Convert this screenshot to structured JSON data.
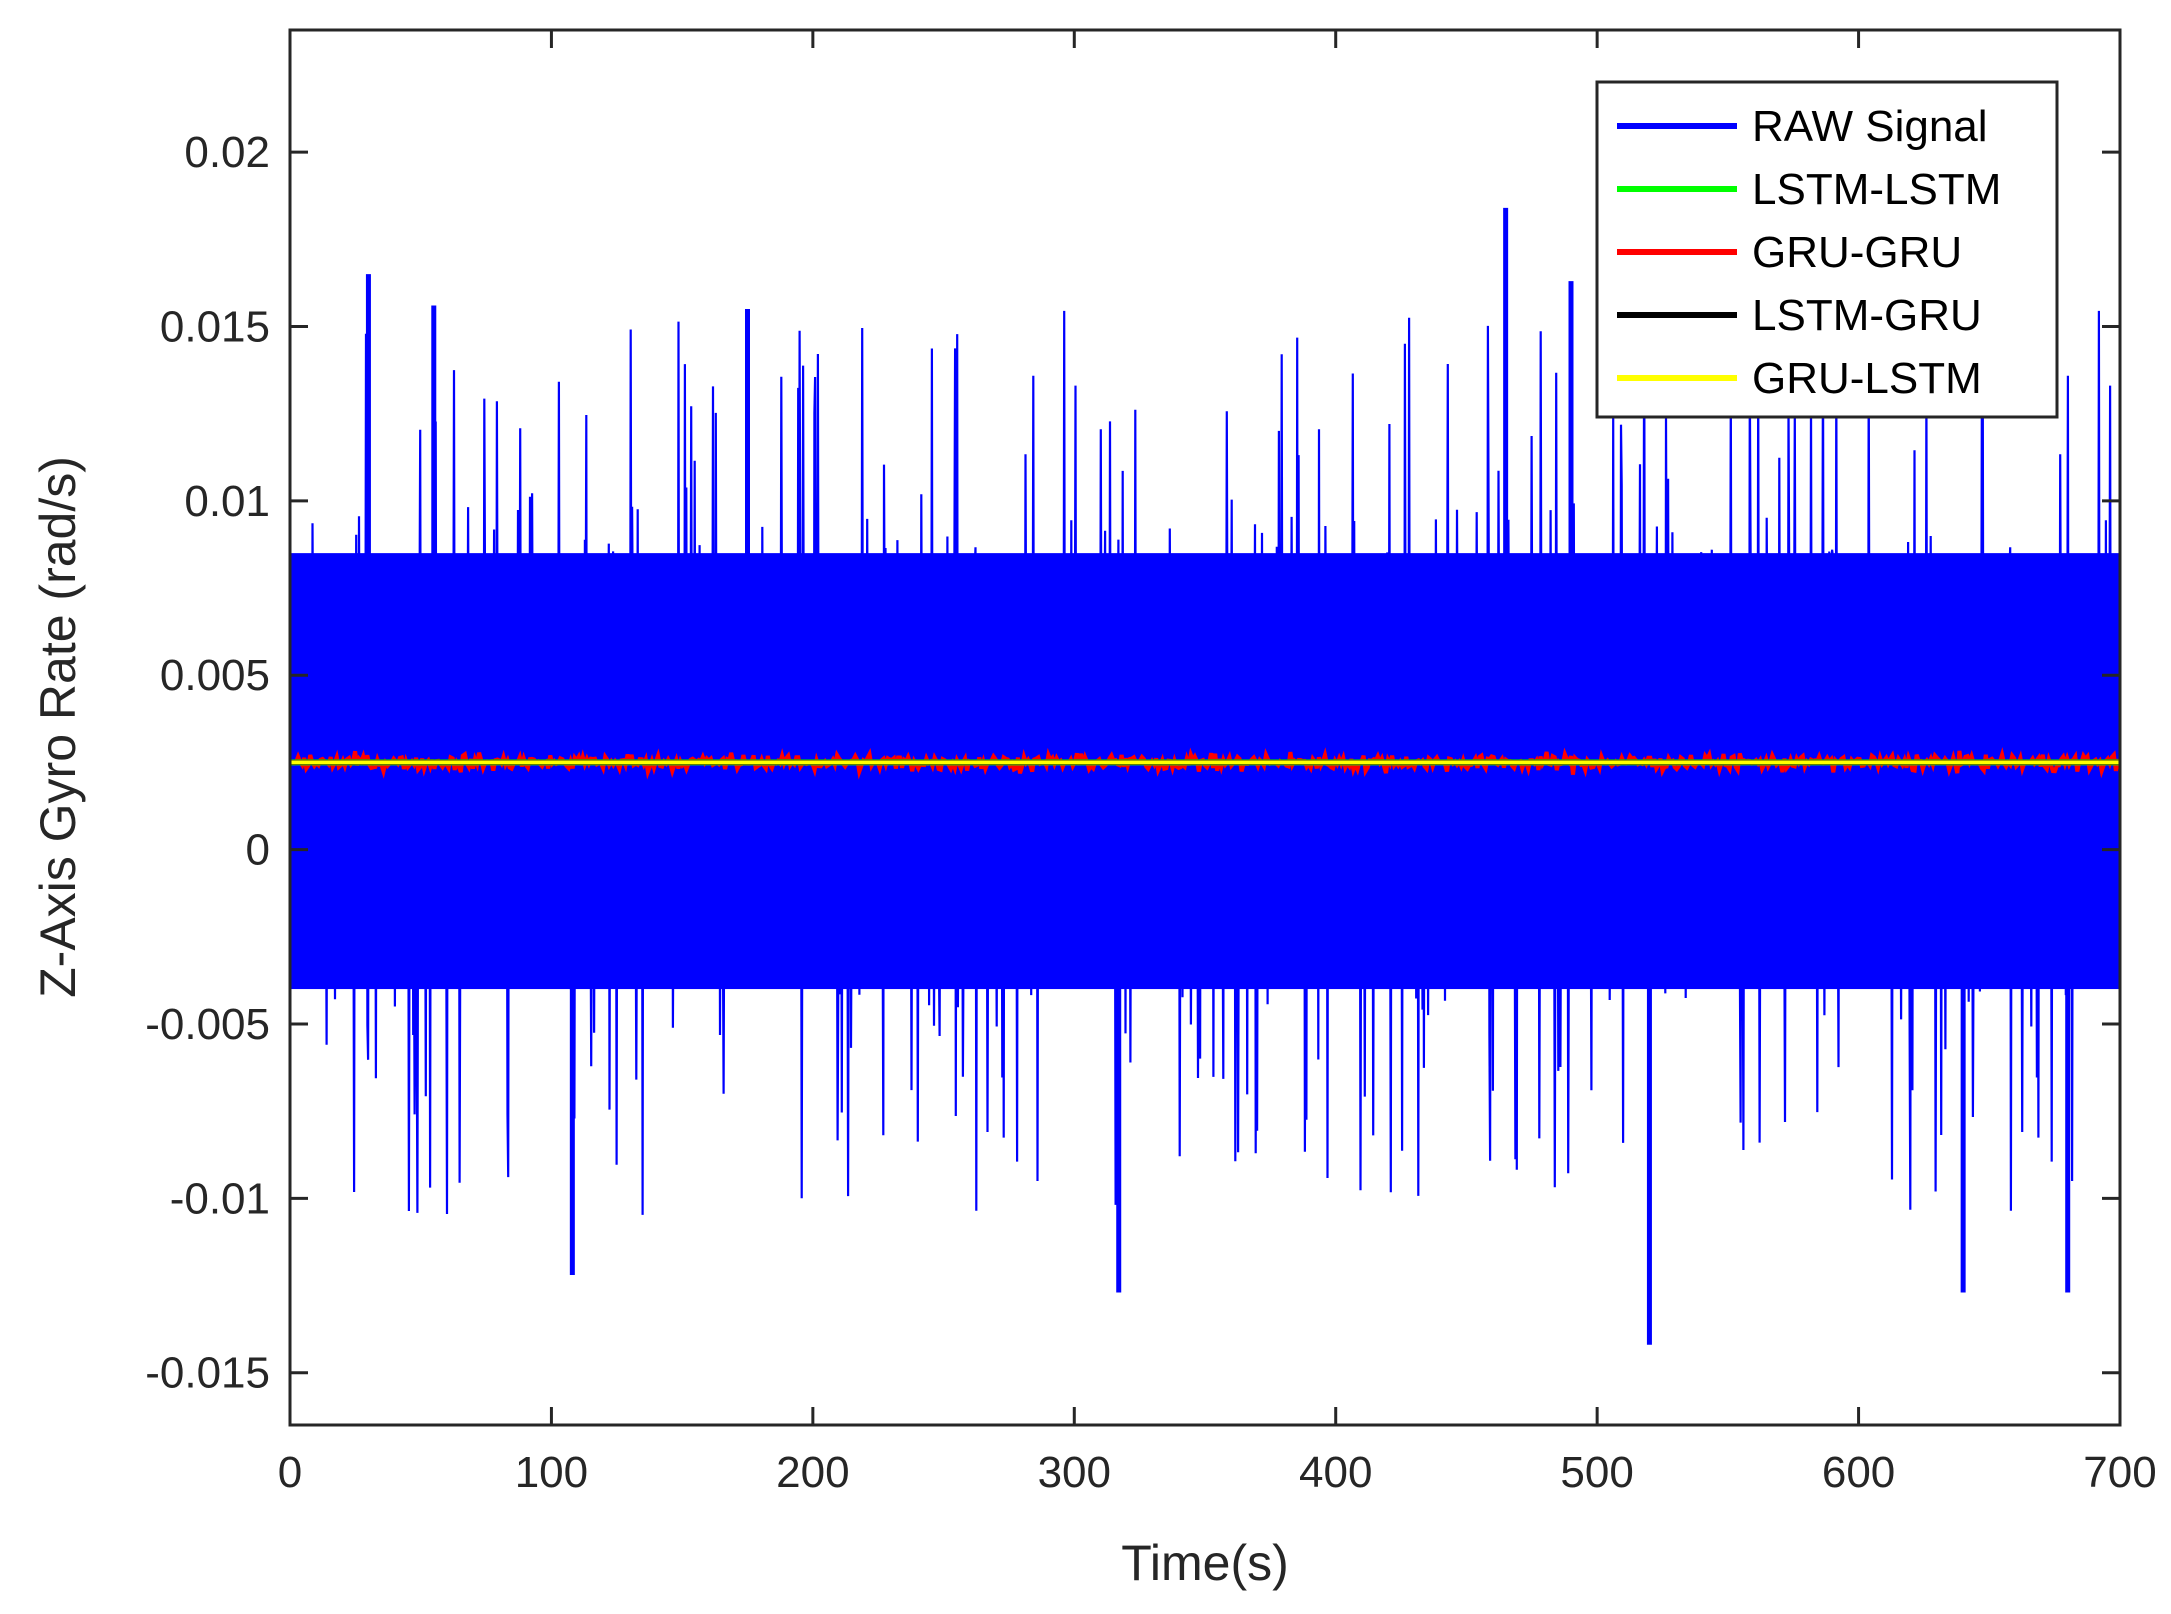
{
  "chart_data": {
    "type": "line",
    "title": "",
    "xlabel": "Time(s)",
    "ylabel": "Z-Axis Gyro Rate (rad/s)",
    "xlim": [
      0,
      700
    ],
    "ylim": [
      -0.0165,
      0.0235
    ],
    "x_ticks": [
      0,
      100,
      200,
      300,
      400,
      500,
      600,
      700
    ],
    "x_tick_labels": [
      "0",
      "100",
      "200",
      "300",
      "400",
      "500",
      "600",
      "700"
    ],
    "y_ticks": [
      -0.015,
      -0.01,
      -0.005,
      0,
      0.005,
      0.01,
      0.015,
      0.02
    ],
    "y_tick_labels": [
      "-0.015",
      "-0.01",
      "-0.005",
      "0",
      "0.005",
      "0.01",
      "0.015",
      "0.02"
    ],
    "grid": false,
    "legend_position": "top-right",
    "series": [
      {
        "name": "RAW Signal",
        "color": "#0000ff",
        "mean": 0.0025,
        "typical_range": [
          -0.004,
          0.0085
        ],
        "peaks": [
          {
            "x": 30,
            "y": 0.0165
          },
          {
            "x": 55,
            "y": 0.0156
          },
          {
            "x": 175,
            "y": 0.0155
          },
          {
            "x": 465,
            "y": 0.0184
          },
          {
            "x": 490,
            "y": 0.0163
          },
          {
            "x": 108,
            "y": -0.0122
          },
          {
            "x": 317,
            "y": -0.0127
          },
          {
            "x": 520,
            "y": -0.0142
          },
          {
            "x": 640,
            "y": -0.0127
          },
          {
            "x": 680,
            "y": -0.0127
          }
        ]
      },
      {
        "name": "LSTM-LSTM",
        "color": "#00ff00",
        "mean": 0.0025
      },
      {
        "name": "GRU-GRU",
        "color": "#ff0000",
        "mean": 0.0025,
        "typical_range": [
          0.0022,
          0.0028
        ]
      },
      {
        "name": "LSTM-GRU",
        "color": "#000000",
        "mean": 0.0025
      },
      {
        "name": "GRU-LSTM",
        "color": "#ffff00",
        "mean": 0.0025
      }
    ]
  }
}
